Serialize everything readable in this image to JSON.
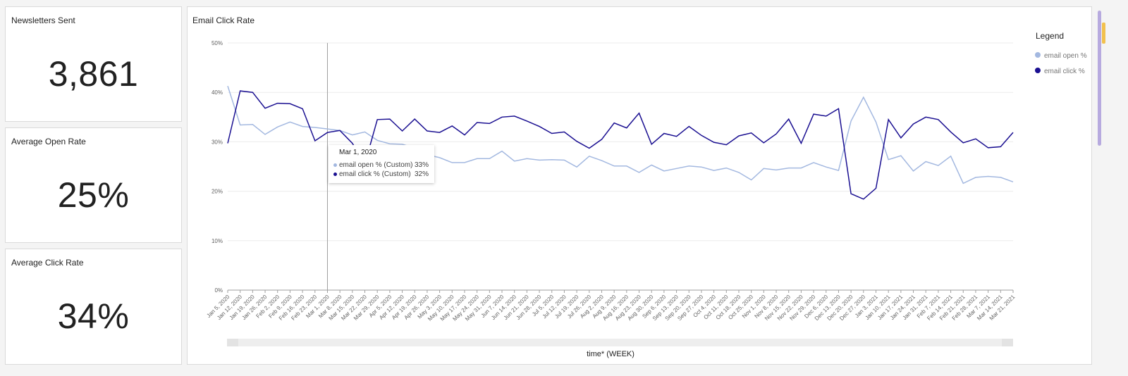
{
  "kpis": {
    "sent": {
      "title": "Newsletters Sent",
      "value": "3,861"
    },
    "open": {
      "title": "Average Open Rate",
      "value": "25%"
    },
    "click": {
      "title": "Average Click Rate",
      "value": "34%"
    }
  },
  "chart": {
    "title": "Email Click Rate"
  },
  "legend": {
    "title": "Legend"
  },
  "tooltip": {
    "date": "Mar 1, 2020",
    "rows": [
      {
        "name": "email open % (Custom)",
        "value": "33%"
      },
      {
        "name": "email click % (Custom)",
        "value": "32%"
      }
    ]
  },
  "colors": {
    "open": "#a3b8e0",
    "click": "#1a0f91",
    "grid": "#ececec",
    "cursor": "#9e9e9e"
  },
  "chart_data": {
    "type": "line",
    "title": "Email Click Rate",
    "xlabel": "time* (WEEK)",
    "ylabel": "",
    "ylim": [
      0,
      50
    ],
    "yticks": [
      "0%",
      "10%",
      "20%",
      "30%",
      "40%",
      "50%"
    ],
    "grid": true,
    "legend_position": "top-right",
    "highlight_index": 8,
    "x": [
      "Jan 5, 2020",
      "Jan 12, 2020",
      "Jan 19, 2020",
      "Jan 26, 2020",
      "Feb 2, 2020",
      "Feb 9, 2020",
      "Feb 16, 2020",
      "Feb 23, 2020",
      "Mar 1, 2020",
      "Mar 8, 2020",
      "Mar 15, 2020",
      "Mar 22, 2020",
      "Mar 29, 2020",
      "Apr 5, 2020",
      "Apr 12, 2020",
      "Apr 19, 2020",
      "Apr 26, 2020",
      "May 3, 2020",
      "May 10, 2020",
      "May 17, 2020",
      "May 24, 2020",
      "May 31, 2020",
      "Jun 7, 2020",
      "Jun 14, 2020",
      "Jun 21, 2020",
      "Jun 28, 2020",
      "Jul 5, 2020",
      "Jul 12, 2020",
      "Jul 19, 2020",
      "Jul 26, 2020",
      "Aug 2, 2020",
      "Aug 9, 2020",
      "Aug 16, 2020",
      "Aug 23, 2020",
      "Aug 30, 2020",
      "Sep 6, 2020",
      "Sep 13, 2020",
      "Sep 20, 2020",
      "Sep 27, 2020",
      "Oct 4, 2020",
      "Oct 11, 2020",
      "Oct 18, 2020",
      "Oct 25, 2020",
      "Nov 1, 2020",
      "Nov 8, 2020",
      "Nov 15, 2020",
      "Nov 22, 2020",
      "Nov 29, 2020",
      "Dec 6, 2020",
      "Dec 13, 2020",
      "Dec 20, 2020",
      "Dec 27, 2020",
      "Jan 3, 2021",
      "Jan 10, 2021",
      "Jan 17, 2021",
      "Jan 24, 2021",
      "Jan 31, 2021",
      "Feb 7, 2021",
      "Feb 14, 2021",
      "Feb 21, 2021",
      "Feb 28, 2021",
      "Mar 7, 2021",
      "Mar 14, 2021",
      "Mar 21, 2021"
    ],
    "series": [
      {
        "name": "email open %",
        "values": [
          41.3,
          33.4,
          33.5,
          31.5,
          33.0,
          34.0,
          33.1,
          32.9,
          32.6,
          32.3,
          31.4,
          32.0,
          30.3,
          29.6,
          29.5,
          28.7,
          27.4,
          26.8,
          25.8,
          25.8,
          26.6,
          26.6,
          28.1,
          26.1,
          26.6,
          26.3,
          26.4,
          26.3,
          24.9,
          27.1,
          26.2,
          25.1,
          25.1,
          23.8,
          25.3,
          24.1,
          24.6,
          25.1,
          24.9,
          24.2,
          24.7,
          23.8,
          22.3,
          24.6,
          24.3,
          24.7,
          24.7,
          25.8,
          24.9,
          24.2,
          34.2,
          39.0,
          34.0,
          26.4,
          27.2,
          24.1,
          26.0,
          25.2,
          27.1,
          21.6,
          22.8,
          23.0,
          22.8,
          21.9
        ]
      },
      {
        "name": "email click %",
        "values": [
          29.7,
          40.3,
          40.0,
          36.8,
          37.8,
          37.7,
          36.7,
          30.2,
          31.9,
          32.3,
          29.7,
          25.5,
          34.5,
          34.6,
          32.2,
          34.6,
          32.2,
          31.9,
          33.2,
          31.4,
          33.9,
          33.7,
          35.0,
          35.2,
          34.2,
          33.1,
          31.7,
          32.0,
          30.1,
          28.7,
          30.5,
          33.8,
          32.8,
          35.8,
          29.5,
          31.7,
          31.1,
          33.1,
          31.3,
          29.9,
          29.4,
          31.2,
          31.8,
          29.8,
          31.6,
          34.6,
          29.7,
          35.6,
          35.2,
          36.7,
          19.5,
          18.4,
          20.6,
          34.5,
          30.8,
          33.6,
          35.0,
          34.5,
          32.0,
          29.8,
          30.6,
          28.8,
          29.0,
          31.9
        ]
      }
    ]
  },
  "icons": {
    "legend_marker": "circle-marker"
  }
}
